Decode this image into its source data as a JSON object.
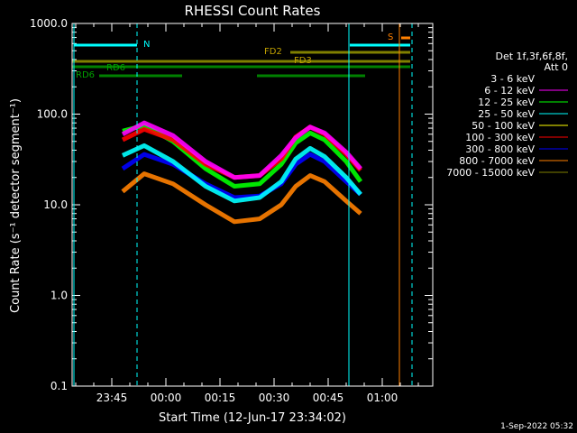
{
  "chart_data": {
    "type": "line",
    "title": "RHESSI Count Rates",
    "xlabel": "Start Time (12-Jun-17 23:34:02)",
    "ylabel": "Count Rate (s⁻¹ detector segment⁻¹)",
    "y_scale": "log",
    "ylim": [
      0.1,
      1000
    ],
    "y_ticks": [
      "0.1",
      "1.0",
      "10.0",
      "100.0",
      "1000.0"
    ],
    "x_ticks": [
      {
        "t": 11,
        "label": "23:45"
      },
      {
        "t": 26,
        "label": "00:00"
      },
      {
        "t": 41,
        "label": "00:15"
      },
      {
        "t": 56,
        "label": "00:30"
      },
      {
        "t": 71,
        "label": "00:45"
      },
      {
        "t": 86,
        "label": "01:00"
      }
    ],
    "xlim": [
      0,
      100
    ],
    "x_units": "minutes since 23:34:02",
    "legend_placement": "right",
    "legend_header": [
      "Det 1f,3f,6f,8f,",
      "Att 0"
    ],
    "series": [
      {
        "name": "3 - 6 keV",
        "color": "#000000",
        "values": []
      },
      {
        "name": "6 - 12 keV",
        "color": "#ff00ff",
        "x": [
          14,
          20,
          28,
          37,
          45,
          52,
          58,
          62,
          66,
          70,
          76,
          80
        ],
        "values": [
          60,
          80,
          58,
          30,
          20,
          21,
          35,
          55,
          72,
          62,
          38,
          25
        ]
      },
      {
        "name": "12 - 25 keV",
        "color": "#00ff00",
        "x": [
          14,
          20,
          28,
          37,
          45,
          52,
          58,
          62,
          66,
          70,
          76,
          80
        ],
        "values": [
          65,
          75,
          50,
          25,
          16,
          17,
          28,
          48,
          62,
          52,
          30,
          18
        ]
      },
      {
        "name": "25 - 50 keV",
        "color": "#00ffff",
        "x": [
          14,
          20,
          28,
          37,
          45,
          52,
          58,
          62,
          66,
          70,
          76,
          80
        ],
        "values": [
          35,
          45,
          30,
          16,
          11,
          12,
          18,
          32,
          42,
          34,
          20,
          13
        ]
      },
      {
        "name": "50 - 100 keV",
        "color": "#ffff00",
        "values": []
      },
      {
        "name": "100 - 300 keV",
        "color": "#ff0000",
        "x": [
          14,
          20,
          28,
          37,
          45,
          52,
          58,
          62,
          66,
          70,
          76,
          80
        ],
        "values": [
          52,
          68,
          52,
          28,
          20,
          21,
          32,
          56,
          72,
          60,
          36,
          24
        ]
      },
      {
        "name": "300 - 800 keV",
        "color": "#0000ff",
        "x": [
          14,
          20,
          28,
          37,
          45,
          52,
          58,
          62,
          66,
          70,
          76,
          80
        ],
        "values": [
          25,
          36,
          28,
          17,
          12,
          12.5,
          17,
          28,
          36,
          30,
          18,
          13
        ]
      },
      {
        "name": "800 - 7000 keV",
        "color": "#ff8000",
        "x": [
          14,
          20,
          28,
          37,
          45,
          52,
          58,
          62,
          66,
          70,
          76,
          80
        ],
        "values": [
          14,
          22,
          17,
          10,
          6.5,
          7,
          10,
          16,
          21,
          18,
          11,
          8
        ]
      },
      {
        "name": "7000 - 15000 keV",
        "color": "#808000",
        "values": []
      }
    ],
    "annotations": [
      {
        "label": "N",
        "color": "#00ffff"
      },
      {
        "label": "RD6",
        "color": "#008000"
      },
      {
        "label": "RD6",
        "color": "#008000"
      },
      {
        "label": "FD2",
        "color": "#808000"
      },
      {
        "label": "FD3",
        "color": "#808000"
      },
      {
        "label": "S",
        "color": "#ff8000"
      }
    ]
  },
  "footer": {
    "date_stamp": "1-Sep-2022 05:32"
  }
}
